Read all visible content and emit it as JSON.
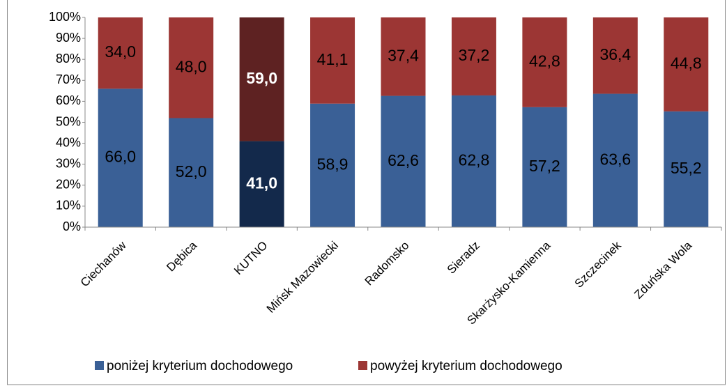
{
  "chart_data": {
    "type": "stacked_bar_100",
    "categories": [
      "Ciechanów",
      "Dębica",
      "KUTNO",
      "Mińsk Mazowiecki",
      "Radomsko",
      "Sieradz",
      "Skarżysko-Kamienna",
      "Szczecinek",
      "Zduńska Wola"
    ],
    "series": [
      {
        "name": "poniżej kryterium dochodowego",
        "color": "#3a6096",
        "values": [
          66.0,
          52.0,
          41.0,
          58.9,
          62.6,
          62.8,
          57.2,
          63.6,
          55.2
        ],
        "value_labels": [
          "66,0",
          "52,0",
          "41,0",
          "58,9",
          "62,6",
          "62,8",
          "57,2",
          "63,6",
          "55,2"
        ]
      },
      {
        "name": "powyżej kryterium dochodowego",
        "color": "#9c3634",
        "values": [
          34.0,
          48.0,
          59.0,
          41.1,
          37.4,
          37.2,
          42.8,
          36.4,
          44.8
        ],
        "value_labels": [
          "34,0",
          "48,0",
          "59,0",
          "41,1",
          "37,4",
          "37,2",
          "42,8",
          "36,4",
          "44,8"
        ]
      }
    ],
    "highlight_index": 2,
    "highlight_colors": [
      "#13294b",
      "#5e2222"
    ],
    "ylim": [
      0,
      100
    ],
    "yticks": [
      {
        "value": 0,
        "label": "0%"
      },
      {
        "value": 10,
        "label": "10%"
      },
      {
        "value": 20,
        "label": "20%"
      },
      {
        "value": 30,
        "label": "30%"
      },
      {
        "value": 40,
        "label": "40%"
      },
      {
        "value": 50,
        "label": "50%"
      },
      {
        "value": 60,
        "label": "60%"
      },
      {
        "value": 70,
        "label": "70%"
      },
      {
        "value": 80,
        "label": "80%"
      },
      {
        "value": 90,
        "label": "90%"
      },
      {
        "value": 100,
        "label": "100%"
      }
    ],
    "legend": "bottom"
  }
}
